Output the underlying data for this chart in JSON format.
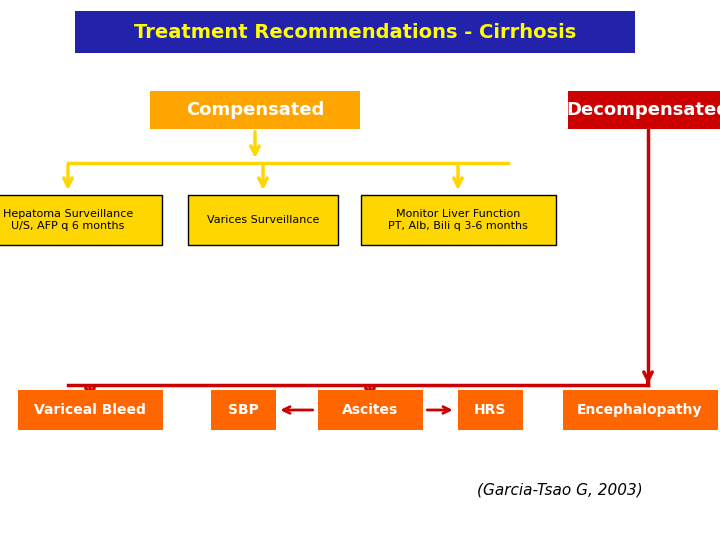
{
  "title": "Treatment Recommendations - Cirrhosis",
  "title_bg": "#2222aa",
  "title_color": "#ffff00",
  "background_color": "#ffffff",
  "compensated_label": "Compensated",
  "compensated_bg": "#ffa500",
  "compensated_color": "#ffffff",
  "decompensated_label": "Decompensated",
  "decompensated_bg": "#cc0000",
  "decompensated_color": "#ffffff",
  "l2_labels": [
    "Hepatoma Surveillance\nU/S, AFP q 6 months",
    "Varices Surveillance",
    "Monitor Liver Function\nPT, Alb, Bili q 3-6 months"
  ],
  "l2_bg": "#ffd700",
  "l2_color": "#000000",
  "l3_labels": [
    "Variceal Bleed",
    "SBP",
    "Ascites",
    "HRS",
    "Encephalopathy"
  ],
  "l3_bg": "#ff6600",
  "l3_color": "#ffffff",
  "citation": "(Garcia-Tsao G, 2003)",
  "arrow_yellow": "#ffd700",
  "arrow_red": "#cc0000"
}
